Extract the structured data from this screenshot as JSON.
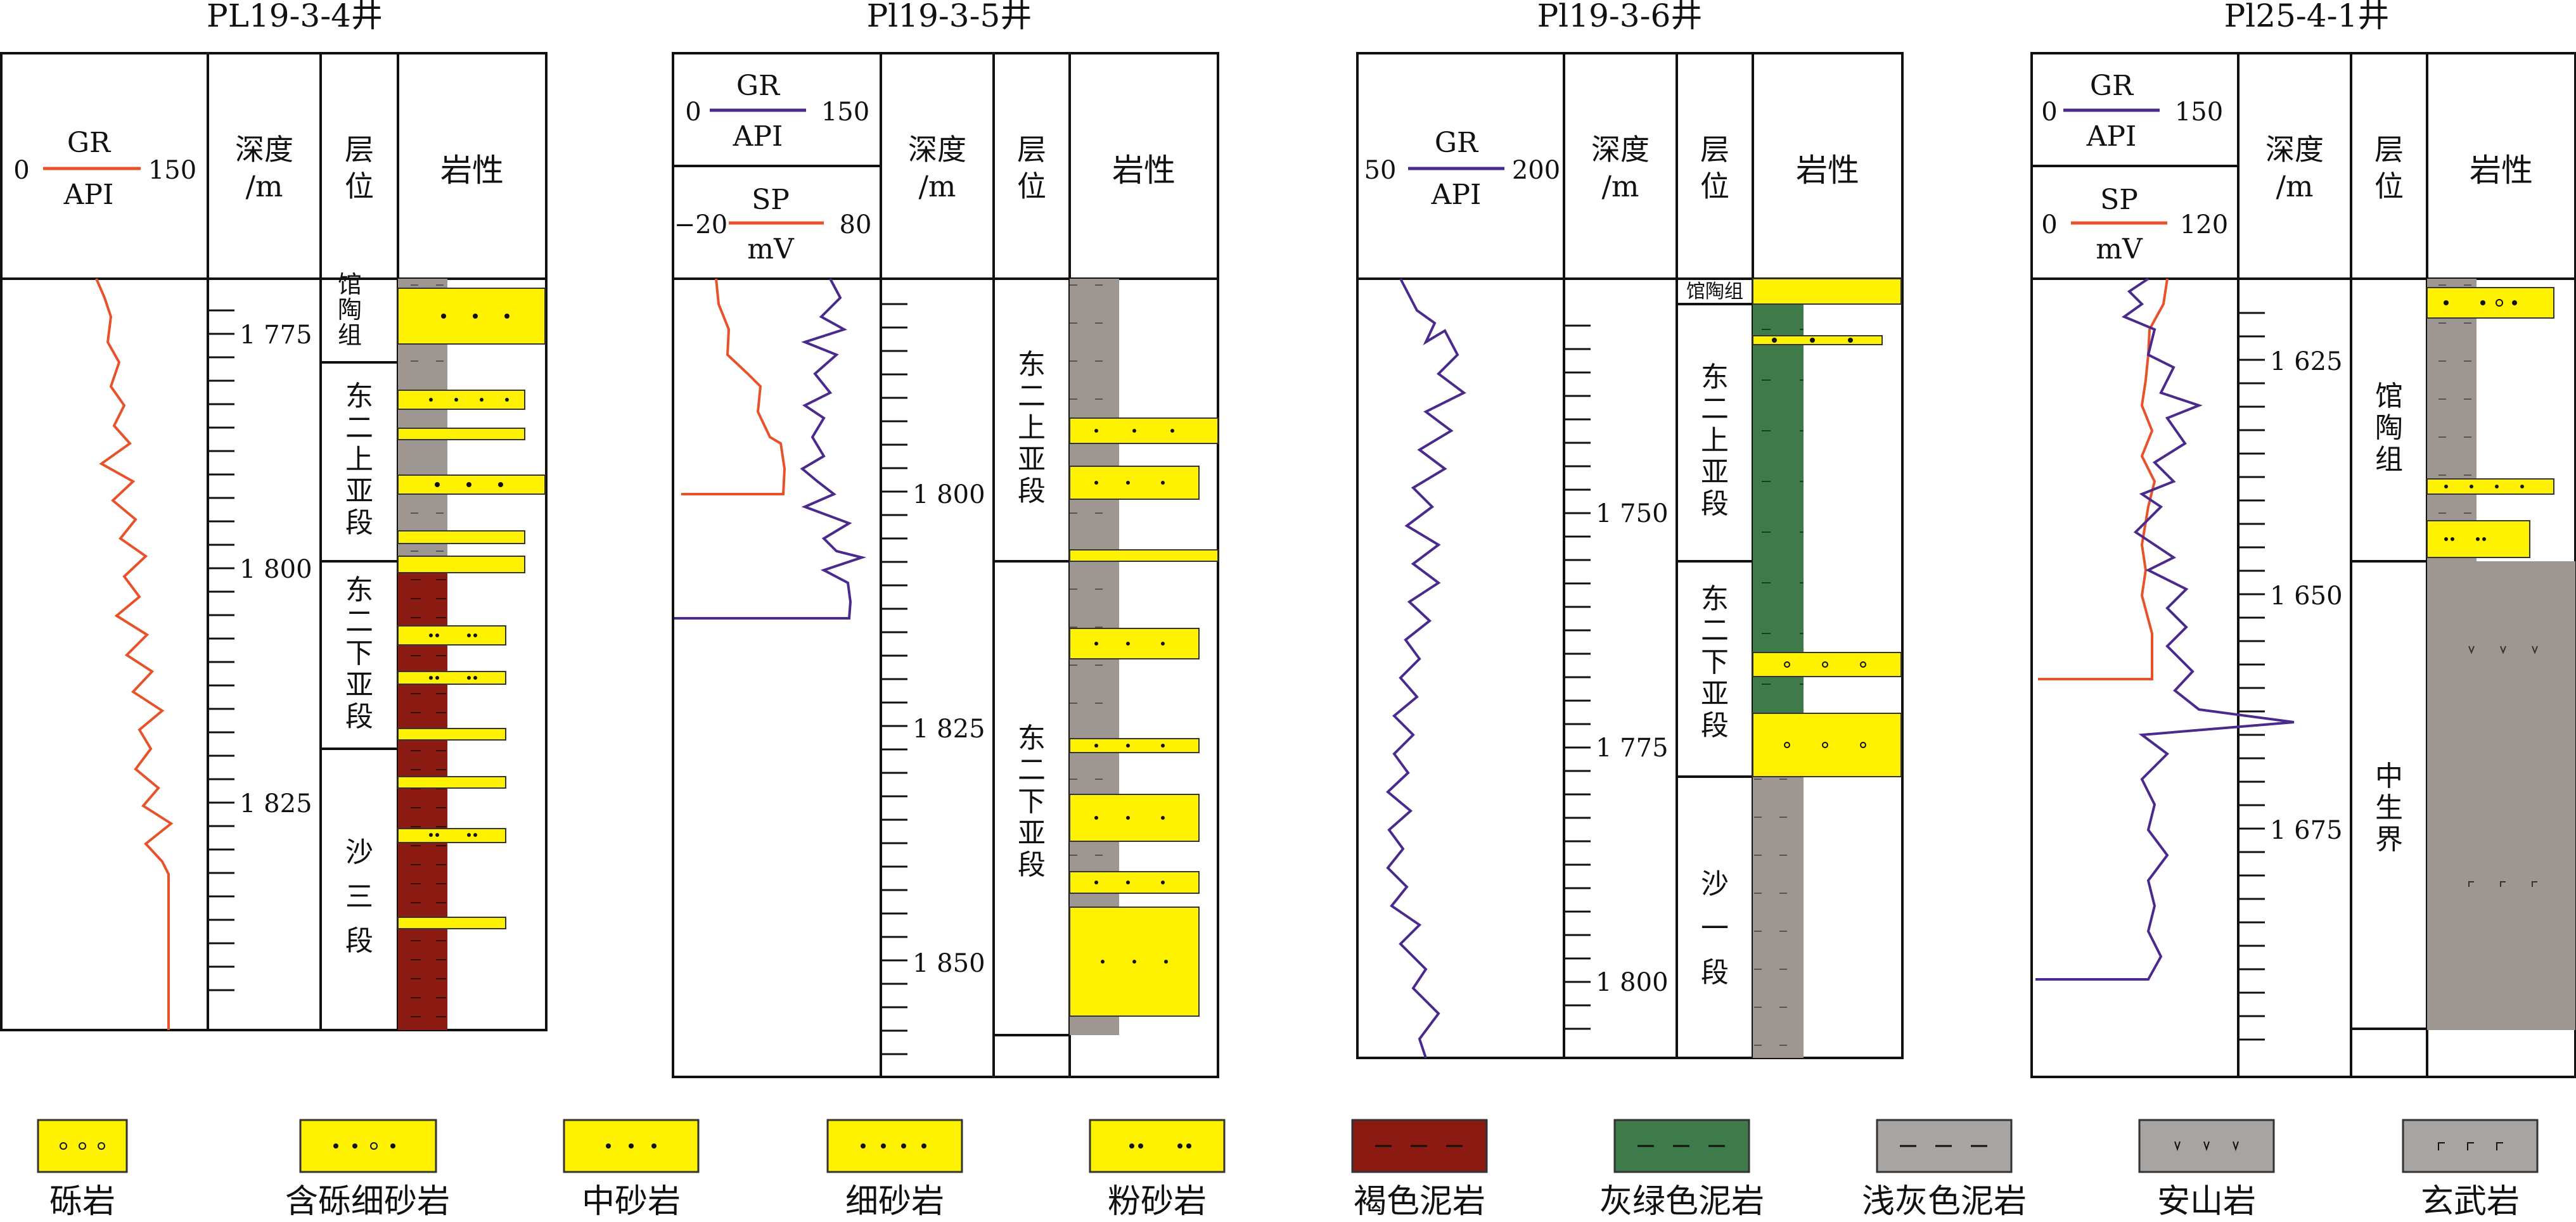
{
  "colors": {
    "gravel": "#fff200",
    "brown_mudstone": "#8b1a12",
    "green_mudstone": "#3f7a4a",
    "gray_mudstone": "#9d9691",
    "gr_curve": "#4a2a8c",
    "sp_curve": "#e8522a",
    "gr_curve_red": "#e8522a"
  },
  "wells": [
    {
      "title": "PL19-3-4井",
      "curve_header": {
        "name": "GR",
        "unit": "API",
        "min": "0",
        "max": "150"
      },
      "depth_header": "深度\n/m",
      "layer_header": "层\n位",
      "litho_header": "岩性",
      "depth_labels": [
        "1 775",
        "1 800",
        "1 825"
      ],
      "layers": [
        "馆陶组",
        "东二上亚段",
        "东二下亚段",
        "沙三段"
      ]
    },
    {
      "title": "Pl19-3-5井",
      "curve_header": {
        "name": "GR",
        "unit": "API",
        "min": "0",
        "max": "150"
      },
      "curve_header2": {
        "name": "SP",
        "unit": "mV",
        "min": "−20",
        "max": "80"
      },
      "depth_header": "深度\n/m",
      "layer_header": "层\n位",
      "litho_header": "岩性",
      "depth_labels": [
        "1 800",
        "1 825",
        "1 850"
      ],
      "layers": [
        "东二上亚段",
        "东二下亚段"
      ]
    },
    {
      "title": "Pl19-3-6井",
      "curve_header": {
        "name": "GR",
        "unit": "API",
        "min": "50",
        "max": "200"
      },
      "depth_header": "深度\n/m",
      "layer_header": "层\n位",
      "litho_header": "岩性",
      "depth_labels": [
        "1 750",
        "1 775",
        "1 800"
      ],
      "layers": [
        "馆陶组",
        "东二上亚段",
        "东二下亚段",
        "沙一段"
      ]
    },
    {
      "title": "Pl25-4-1井",
      "curve_header": {
        "name": "GR",
        "unit": "API",
        "min": "0",
        "max": "150"
      },
      "curve_header2": {
        "name": "SP",
        "unit": "mV",
        "min": "0",
        "max": "120"
      },
      "depth_header": "深度\n/m",
      "layer_header": "层\n位",
      "litho_header": "岩性",
      "depth_labels": [
        "1 625",
        "1 650",
        "1 675"
      ],
      "layers": [
        "馆陶组",
        "中生界"
      ]
    }
  ],
  "legend": [
    {
      "label": "砾岩",
      "icon": "gravel-pattern"
    },
    {
      "label": "含砾细砂岩",
      "icon": "pebbly-fine-sandstone-pattern"
    },
    {
      "label": "中砂岩",
      "icon": "medium-sandstone-pattern"
    },
    {
      "label": "细砂岩",
      "icon": "fine-sandstone-pattern"
    },
    {
      "label": "粉砂岩",
      "icon": "siltstone-pattern"
    },
    {
      "label": "褐色泥岩",
      "icon": "brown-mudstone-pattern"
    },
    {
      "label": "灰绿色泥岩",
      "icon": "gray-green-mudstone-pattern"
    },
    {
      "label": "浅灰色泥岩",
      "icon": "light-gray-mudstone-pattern"
    },
    {
      "label": "安山岩",
      "icon": "andesite-pattern"
    },
    {
      "label": "玄武岩",
      "icon": "basalt-pattern"
    }
  ]
}
